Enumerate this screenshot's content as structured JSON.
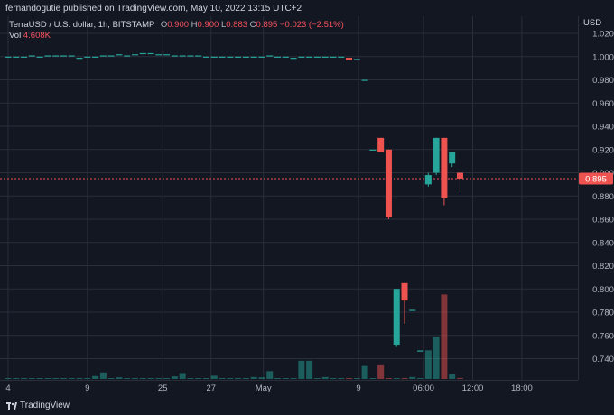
{
  "header": {
    "publisher": "fernandogutie published on TradingView.com, May 10, 2022 13:15 UTC+2"
  },
  "legend": {
    "symbol": "TerraUSD / U.S. dollar, 1h, BITSTAMP",
    "o_label": "O",
    "o_value": "0.900",
    "h_label": "H",
    "h_value": "0.900",
    "l_label": "L",
    "l_value": "0.883",
    "c_label": "C",
    "c_value": "0.895",
    "change": "−0.023 (−2.51%)",
    "vol_label": "Vol",
    "vol_value": "4.608K"
  },
  "currency": "USD",
  "last_price_label": "0.895",
  "footer": {
    "brand": "TradingView"
  },
  "colors": {
    "up": "#26a69a",
    "down": "#ef5350",
    "background": "#131722",
    "grid": "#2a2e39",
    "price_line": "#ef5350"
  },
  "chart_data": {
    "type": "candlestick",
    "y_axis": {
      "min": 0.72,
      "max": 1.025,
      "ticks": [
        1.02,
        1.0,
        0.98,
        0.96,
        0.94,
        0.92,
        0.9,
        0.88,
        0.86,
        0.84,
        0.82,
        0.8,
        0.78,
        0.76,
        0.74
      ]
    },
    "x_ticks": [
      {
        "label": "4",
        "t": 0.0
      },
      {
        "label": "9",
        "t": 10.0
      },
      {
        "label": "25",
        "t": 19.5
      },
      {
        "label": "27",
        "t": 25.6
      },
      {
        "label": "May",
        "t": 32.2
      },
      {
        "label": "9",
        "t": 44.2
      },
      {
        "label": "06:00",
        "t": 52.4
      },
      {
        "label": "12:00",
        "t": 58.6
      },
      {
        "label": "18:00",
        "t": 64.8
      }
    ],
    "grid": true,
    "last_price": 0.895,
    "candles": [
      {
        "t": 0,
        "o": 1.0,
        "h": 1.0,
        "l": 1.0,
        "c": 1.0,
        "v": 0.01
      },
      {
        "t": 1,
        "o": 1.0,
        "h": 1.0,
        "l": 1.0,
        "c": 1.0,
        "v": 0.01
      },
      {
        "t": 2,
        "o": 1.0,
        "h": 1.0,
        "l": 1.0,
        "c": 1.0,
        "v": 0.01
      },
      {
        "t": 3,
        "o": 1.001,
        "h": 1.001,
        "l": 1.001,
        "c": 1.001,
        "v": 0.01
      },
      {
        "t": 4,
        "o": 1.0,
        "h": 1.0,
        "l": 1.0,
        "c": 1.0,
        "v": 0.01
      },
      {
        "t": 5,
        "o": 1.001,
        "h": 1.001,
        "l": 1.001,
        "c": 1.001,
        "v": 0.01
      },
      {
        "t": 6,
        "o": 1.001,
        "h": 1.001,
        "l": 1.001,
        "c": 1.001,
        "v": 0.01
      },
      {
        "t": 7,
        "o": 1.001,
        "h": 1.001,
        "l": 1.001,
        "c": 1.001,
        "v": 0.01
      },
      {
        "t": 8,
        "o": 1.001,
        "h": 1.001,
        "l": 1.001,
        "c": 1.001,
        "v": 0.01
      },
      {
        "t": 9,
        "o": 0.999,
        "h": 0.999,
        "l": 0.999,
        "c": 0.999,
        "v": 0.01
      },
      {
        "t": 10,
        "o": 1.0,
        "h": 1.0,
        "l": 1.0,
        "c": 1.0,
        "v": 0.01
      },
      {
        "t": 11,
        "o": 1.0,
        "h": 1.0,
        "l": 1.0,
        "c": 1.0,
        "v": 0.09
      },
      {
        "t": 12,
        "o": 1.001,
        "h": 1.001,
        "l": 1.001,
        "c": 1.001,
        "v": 0.2
      },
      {
        "t": 13,
        "o": 1.001,
        "h": 1.001,
        "l": 1.001,
        "c": 1.001,
        "v": 0.01
      },
      {
        "t": 14,
        "o": 1.002,
        "h": 1.002,
        "l": 1.002,
        "c": 1.002,
        "v": 0.05
      },
      {
        "t": 15,
        "o": 1.001,
        "h": 1.001,
        "l": 1.001,
        "c": 1.001,
        "v": 0.01
      },
      {
        "t": 16,
        "o": 1.002,
        "h": 1.002,
        "l": 1.002,
        "c": 1.002,
        "v": 0.01
      },
      {
        "t": 17,
        "o": 1.003,
        "h": 1.003,
        "l": 1.003,
        "c": 1.003,
        "v": 0.02
      },
      {
        "t": 18,
        "o": 1.003,
        "h": 1.003,
        "l": 1.003,
        "c": 1.003,
        "v": 0.01
      },
      {
        "t": 19,
        "o": 1.002,
        "h": 1.002,
        "l": 1.002,
        "c": 1.002,
        "v": 0.01
      },
      {
        "t": 20,
        "o": 1.002,
        "h": 1.002,
        "l": 1.002,
        "c": 1.002,
        "v": 0.01
      },
      {
        "t": 21,
        "o": 1.001,
        "h": 1.001,
        "l": 1.001,
        "c": 1.001,
        "v": 0.08
      },
      {
        "t": 22,
        "o": 1.001,
        "h": 1.001,
        "l": 1.001,
        "c": 1.001,
        "v": 0.18
      },
      {
        "t": 23,
        "o": 1.001,
        "h": 1.001,
        "l": 1.001,
        "c": 1.001,
        "v": 0.01
      },
      {
        "t": 24,
        "o": 1.001,
        "h": 1.001,
        "l": 1.001,
        "c": 1.001,
        "v": 0.01
      },
      {
        "t": 25,
        "o": 1.0,
        "h": 1.0,
        "l": 1.0,
        "c": 1.0,
        "v": 0.01
      },
      {
        "t": 26,
        "o": 1.0,
        "h": 1.0,
        "l": 1.0,
        "c": 1.0,
        "v": 0.1
      },
      {
        "t": 27,
        "o": 1.0,
        "h": 1.0,
        "l": 1.0,
        "c": 1.0,
        "v": 0.01
      },
      {
        "t": 28,
        "o": 1.0,
        "h": 1.0,
        "l": 1.0,
        "c": 1.0,
        "v": 0.01
      },
      {
        "t": 29,
        "o": 1.0,
        "h": 1.0,
        "l": 1.0,
        "c": 1.0,
        "v": 0.01
      },
      {
        "t": 30,
        "o": 1.0,
        "h": 1.0,
        "l": 1.0,
        "c": 1.0,
        "v": 0.01
      },
      {
        "t": 31,
        "o": 1.0,
        "h": 1.0,
        "l": 1.0,
        "c": 1.0,
        "v": 0.06
      },
      {
        "t": 32,
        "o": 1.0,
        "h": 1.0,
        "l": 1.0,
        "c": 1.0,
        "v": 0.05
      },
      {
        "t": 33,
        "o": 1.001,
        "h": 1.001,
        "l": 1.001,
        "c": 1.001,
        "v": 0.24
      },
      {
        "t": 34,
        "o": 1.0,
        "h": 1.0,
        "l": 1.0,
        "c": 1.0,
        "v": 0.01
      },
      {
        "t": 35,
        "o": 1.0,
        "h": 1.0,
        "l": 1.0,
        "c": 1.0,
        "v": 0.01
      },
      {
        "t": 36,
        "o": 0.999,
        "h": 0.999,
        "l": 0.999,
        "c": 0.999,
        "v": 0.01
      },
      {
        "t": 37,
        "o": 1.0,
        "h": 1.0,
        "l": 1.0,
        "c": 1.0,
        "v": 0.56
      },
      {
        "t": 38,
        "o": 1.0,
        "h": 1.0,
        "l": 1.0,
        "c": 1.0,
        "v": 0.56
      },
      {
        "t": 39,
        "o": 1.0,
        "h": 1.0,
        "l": 1.0,
        "c": 1.0,
        "v": 0.01
      },
      {
        "t": 40,
        "o": 1.0,
        "h": 1.0,
        "l": 1.0,
        "c": 1.0,
        "v": 0.06
      },
      {
        "t": 41,
        "o": 1.0,
        "h": 1.0,
        "l": 1.0,
        "c": 1.0,
        "v": 0.01
      },
      {
        "t": 42,
        "o": 1.0,
        "h": 1.0,
        "l": 1.0,
        "c": 1.0,
        "v": 0.01
      },
      {
        "t": 43,
        "o": 0.999,
        "h": 0.999,
        "l": 0.997,
        "c": 0.997,
        "v": 0.01
      },
      {
        "t": 44,
        "o": 0.998,
        "h": 0.998,
        "l": 0.998,
        "c": 0.998,
        "v": 0.01
      },
      {
        "t": 45,
        "o": 0.98,
        "h": 0.98,
        "l": 0.98,
        "c": 0.98,
        "v": 0.4
      },
      {
        "t": 46,
        "o": 0.92,
        "h": 0.92,
        "l": 0.92,
        "c": 0.92,
        "v": 0.01
      },
      {
        "t": 47,
        "o": 0.93,
        "h": 0.93,
        "l": 0.918,
        "c": 0.918,
        "v": 0.42
      },
      {
        "t": 48,
        "o": 0.92,
        "h": 0.92,
        "l": 0.86,
        "c": 0.862,
        "v": 0.01
      },
      {
        "t": 49,
        "o": 0.752,
        "h": 0.8,
        "l": 0.75,
        "c": 0.8,
        "v": 0.01
      },
      {
        "t": 50,
        "o": 0.805,
        "h": 0.805,
        "l": 0.77,
        "c": 0.79,
        "v": 0.01
      },
      {
        "t": 51,
        "o": 0.782,
        "h": 0.782,
        "l": 0.782,
        "c": 0.782,
        "v": 0.06
      },
      {
        "t": 52,
        "o": 0.747,
        "h": 0.747,
        "l": 0.747,
        "c": 0.747,
        "v": 0.01
      },
      {
        "t": 53,
        "o": 0.89,
        "h": 0.9,
        "l": 0.888,
        "c": 0.898,
        "v": 0.88
      },
      {
        "t": 54,
        "o": 0.9,
        "h": 0.93,
        "l": 0.898,
        "c": 0.93,
        "v": 1.3
      },
      {
        "t": 55,
        "o": 0.93,
        "h": 0.93,
        "l": 0.872,
        "c": 0.878,
        "v": 2.6
      },
      {
        "t": 56,
        "o": 0.908,
        "h": 0.918,
        "l": 0.905,
        "c": 0.918,
        "v": 0.15
      },
      {
        "t": 57,
        "o": 0.9,
        "h": 0.9,
        "l": 0.883,
        "c": 0.895,
        "v": 0.03
      }
    ]
  }
}
